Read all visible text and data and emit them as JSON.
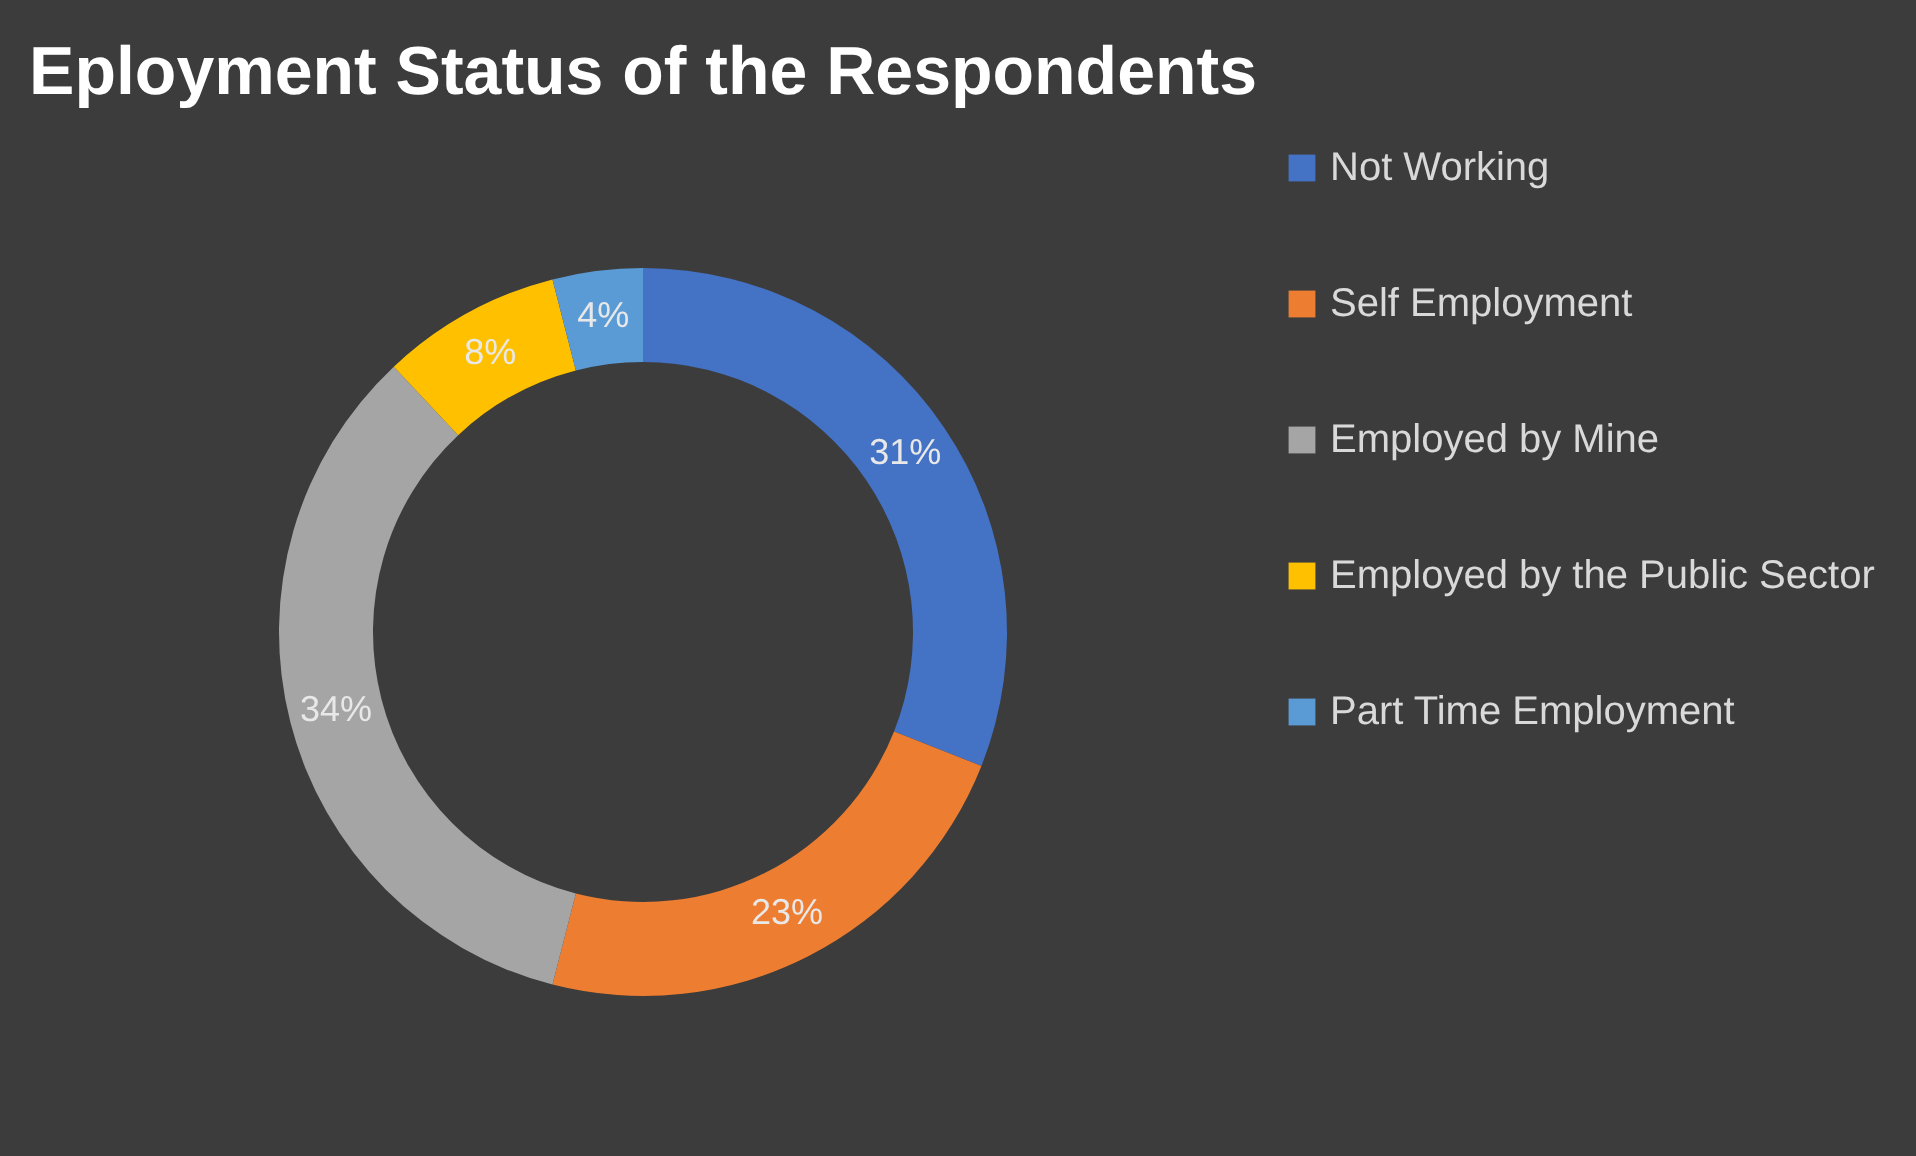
{
  "chart_data": {
    "type": "donut",
    "title": "Eployment Status of the Respondents",
    "categories": [
      "Not Working",
      "Self Employment",
      "Employed by Mine",
      "Employed by the Public Sector",
      "Part Time Employment"
    ],
    "values": [
      31,
      23,
      34,
      8,
      4
    ],
    "colors": [
      "#4472c4",
      "#ed7d31",
      "#a5a5a5",
      "#ffc000",
      "#5b9bd5"
    ],
    "value_labels": [
      "31%",
      "23%",
      "34%",
      "8%",
      "4%"
    ],
    "legend": "right"
  }
}
